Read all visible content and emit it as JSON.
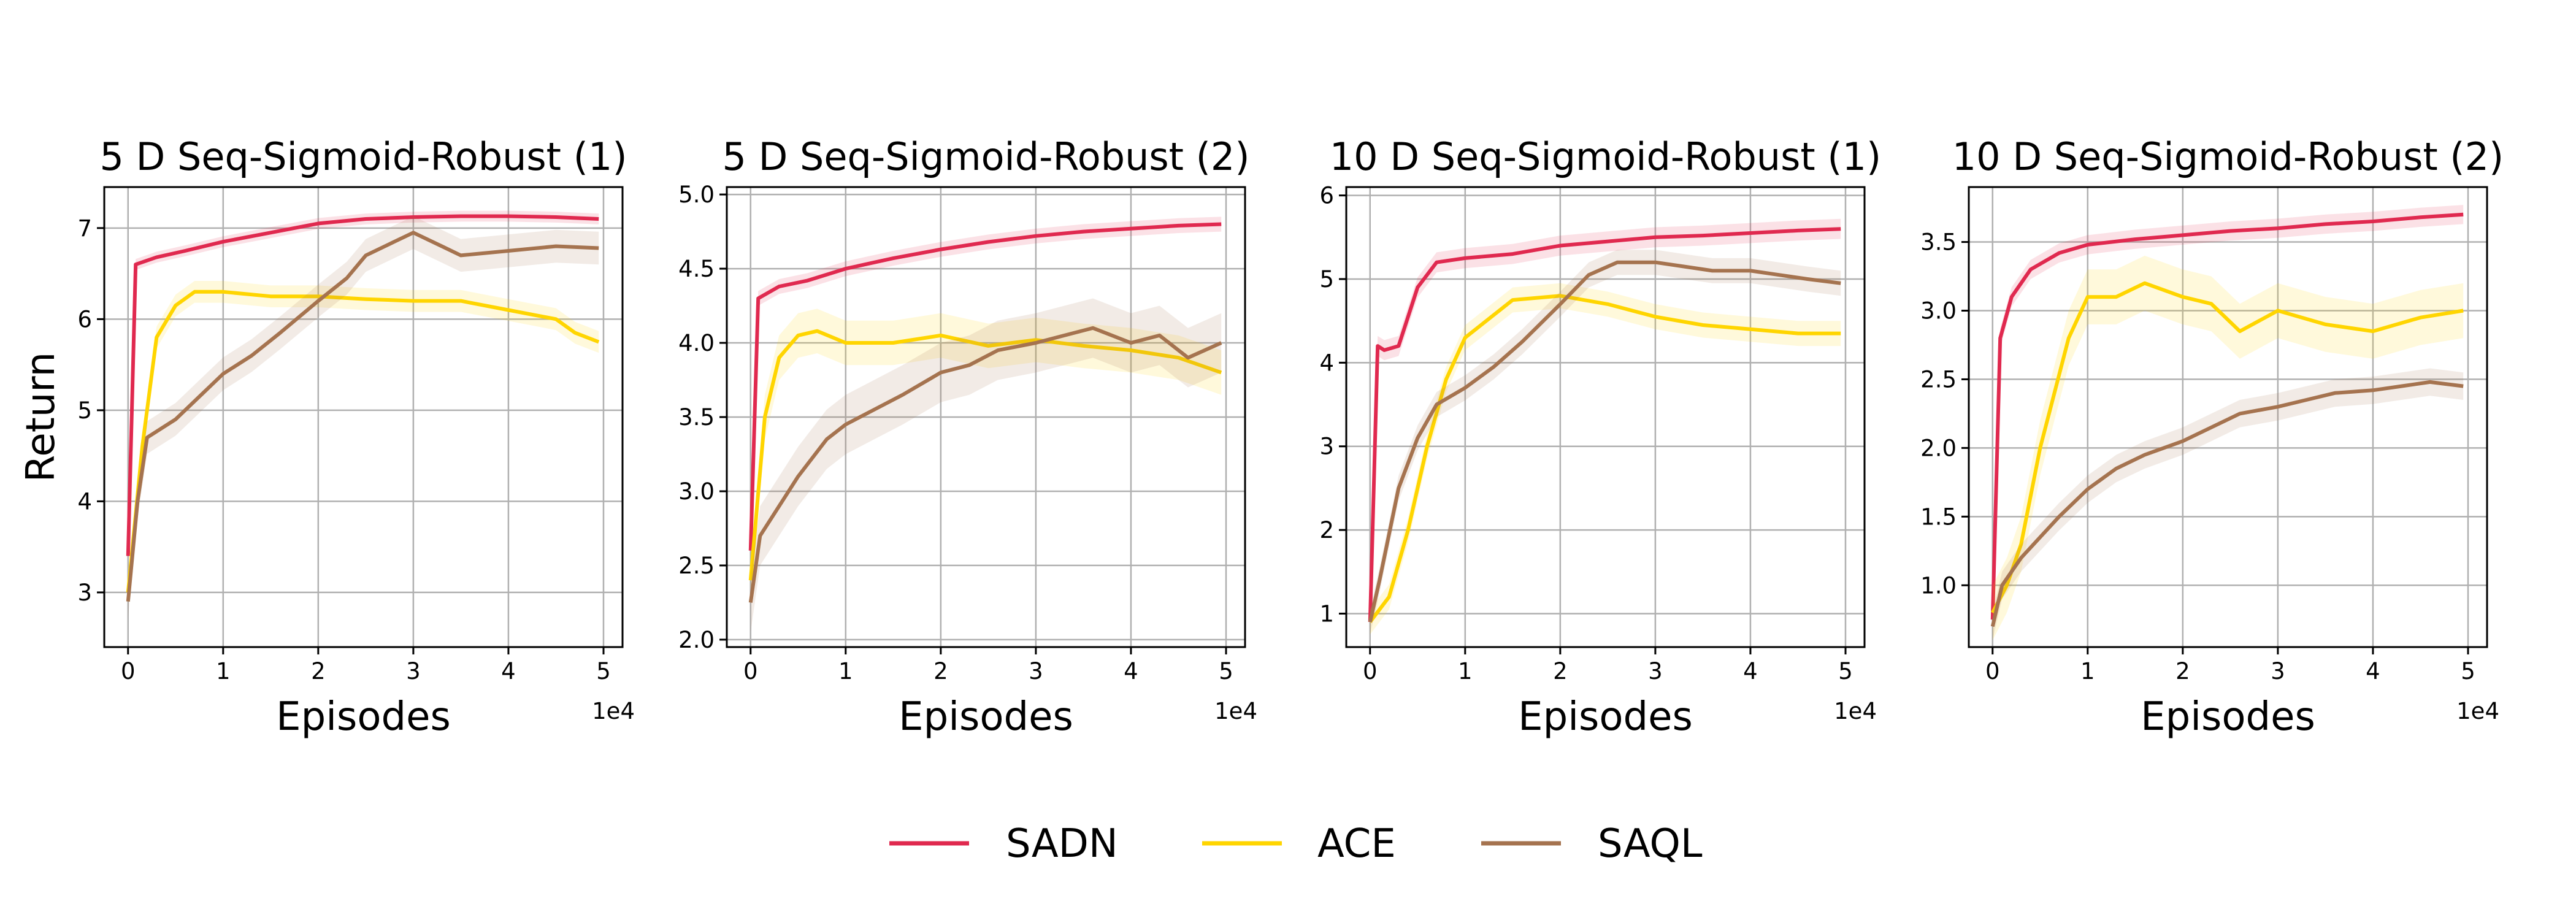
{
  "figure": {
    "ylabel": "Return",
    "legend": {
      "position": "bottom-center",
      "entries": [
        {
          "name": "SADN",
          "color": "#e0294f"
        },
        {
          "name": "ACE",
          "color": "#ffd500"
        },
        {
          "name": "SAQL",
          "color": "#a5734f"
        }
      ]
    }
  },
  "chart_data": [
    {
      "type": "line",
      "title": "5 D Seq-Sigmoid-Robust (1)",
      "xlabel": "Episodes",
      "x_offset_label": "1e4",
      "xlim": [
        -0.25,
        5.2
      ],
      "ylim": [
        2.4,
        7.45
      ],
      "xticks": [
        0,
        1,
        2,
        3,
        4,
        5
      ],
      "xtick_labels": [
        "0",
        "1",
        "2",
        "3",
        "4",
        "5"
      ],
      "yticks": [
        3,
        4,
        5,
        6,
        7
      ],
      "ytick_labels": [
        "3",
        "4",
        "5",
        "6",
        "7"
      ],
      "grid": true,
      "series": [
        {
          "name": "SADN",
          "x": [
            0,
            0.08,
            0.3,
            0.6,
            1,
            1.5,
            2,
            2.5,
            3,
            3.5,
            4,
            4.5,
            4.95
          ],
          "y": [
            3.4,
            6.6,
            6.68,
            6.75,
            6.85,
            6.95,
            7.05,
            7.1,
            7.12,
            7.13,
            7.13,
            7.12,
            7.1
          ],
          "band": 0.06
        },
        {
          "name": "ACE",
          "x": [
            0,
            0.15,
            0.3,
            0.5,
            0.7,
            1,
            1.5,
            2,
            2.5,
            3,
            3.5,
            4,
            4.5,
            4.7,
            4.95
          ],
          "y": [
            3.0,
            4.6,
            5.8,
            6.15,
            6.3,
            6.3,
            6.25,
            6.25,
            6.22,
            6.2,
            6.2,
            6.1,
            6.0,
            5.85,
            5.75
          ],
          "band": 0.12
        },
        {
          "name": "SAQL",
          "x": [
            0,
            0.1,
            0.2,
            0.5,
            0.8,
            1,
            1.3,
            1.6,
            2,
            2.3,
            2.5,
            2.8,
            3,
            3.3,
            3.5,
            4,
            4.5,
            4.95
          ],
          "y": [
            2.9,
            4.0,
            4.7,
            4.9,
            5.2,
            5.4,
            5.6,
            5.85,
            6.2,
            6.45,
            6.7,
            6.85,
            6.95,
            6.8,
            6.7,
            6.75,
            6.8,
            6.78
          ],
          "band": 0.18
        }
      ]
    },
    {
      "type": "line",
      "title": "5 D Seq-Sigmoid-Robust (2)",
      "xlabel": "Episodes",
      "x_offset_label": "1e4",
      "xlim": [
        -0.25,
        5.2
      ],
      "ylim": [
        1.95,
        5.05
      ],
      "xticks": [
        0,
        1,
        2,
        3,
        4,
        5
      ],
      "xtick_labels": [
        "0",
        "1",
        "2",
        "3",
        "4",
        "5"
      ],
      "yticks": [
        2.0,
        2.5,
        3.0,
        3.5,
        4.0,
        4.5,
        5.0
      ],
      "ytick_labels": [
        "2.0",
        "2.5",
        "3.0",
        "3.5",
        "4.0",
        "4.5",
        "5.0"
      ],
      "grid": true,
      "series": [
        {
          "name": "SADN",
          "x": [
            0,
            0.08,
            0.3,
            0.6,
            1,
            1.5,
            2,
            2.5,
            3,
            3.5,
            4,
            4.5,
            4.95
          ],
          "y": [
            2.6,
            4.3,
            4.38,
            4.42,
            4.5,
            4.57,
            4.63,
            4.68,
            4.72,
            4.75,
            4.77,
            4.79,
            4.8
          ],
          "band": 0.05
        },
        {
          "name": "ACE",
          "x": [
            0,
            0.15,
            0.3,
            0.5,
            0.7,
            1,
            1.5,
            2,
            2.5,
            3,
            3.5,
            4,
            4.5,
            4.95
          ],
          "y": [
            2.4,
            3.5,
            3.9,
            4.05,
            4.08,
            4.0,
            4.0,
            4.05,
            3.98,
            4.02,
            3.98,
            3.95,
            3.9,
            3.8
          ],
          "band": 0.15
        },
        {
          "name": "SAQL",
          "x": [
            0,
            0.1,
            0.2,
            0.5,
            0.8,
            1,
            1.3,
            1.6,
            2,
            2.3,
            2.6,
            3,
            3.3,
            3.6,
            4,
            4.3,
            4.6,
            4.95
          ],
          "y": [
            2.25,
            2.7,
            2.8,
            3.1,
            3.35,
            3.45,
            3.55,
            3.65,
            3.8,
            3.85,
            3.95,
            4.0,
            4.05,
            4.1,
            4.0,
            4.05,
            3.9,
            4.0
          ],
          "band": 0.2
        }
      ]
    },
    {
      "type": "line",
      "title": "10 D Seq-Sigmoid-Robust (1)",
      "xlabel": "Episodes",
      "x_offset_label": "1e4",
      "xlim": [
        -0.25,
        5.2
      ],
      "ylim": [
        0.6,
        6.1
      ],
      "xticks": [
        0,
        1,
        2,
        3,
        4,
        5
      ],
      "xtick_labels": [
        "0",
        "1",
        "2",
        "3",
        "4",
        "5"
      ],
      "yticks": [
        1,
        2,
        3,
        4,
        5,
        6
      ],
      "ytick_labels": [
        "1",
        "2",
        "3",
        "4",
        "5",
        "6"
      ],
      "grid": true,
      "series": [
        {
          "name": "SADN",
          "x": [
            0,
            0.08,
            0.15,
            0.3,
            0.5,
            0.7,
            1,
            1.5,
            2,
            2.5,
            3,
            3.5,
            4,
            4.5,
            4.95
          ],
          "y": [
            0.9,
            4.2,
            4.15,
            4.2,
            4.9,
            5.2,
            5.25,
            5.3,
            5.4,
            5.45,
            5.5,
            5.52,
            5.55,
            5.58,
            5.6
          ],
          "band": 0.12
        },
        {
          "name": "ACE",
          "x": [
            0,
            0.2,
            0.4,
            0.6,
            0.8,
            1,
            1.5,
            2,
            2.5,
            3,
            3.5,
            4,
            4.5,
            4.95
          ],
          "y": [
            0.9,
            1.2,
            2.0,
            3.0,
            3.8,
            4.3,
            4.75,
            4.8,
            4.7,
            4.55,
            4.45,
            4.4,
            4.35,
            4.35
          ],
          "band": 0.15
        },
        {
          "name": "SAQL",
          "x": [
            0,
            0.1,
            0.3,
            0.5,
            0.7,
            1,
            1.3,
            1.6,
            2,
            2.3,
            2.6,
            3,
            3.3,
            3.6,
            4,
            4.3,
            4.6,
            4.95
          ],
          "y": [
            0.9,
            1.4,
            2.5,
            3.1,
            3.5,
            3.7,
            3.95,
            4.25,
            4.7,
            5.05,
            5.2,
            5.2,
            5.15,
            5.1,
            5.1,
            5.05,
            5.0,
            4.95
          ],
          "band": 0.15
        }
      ]
    },
    {
      "type": "line",
      "title": "10 D Seq-Sigmoid-Robust (2)",
      "xlabel": "Episodes",
      "x_offset_label": "1e4",
      "xlim": [
        -0.25,
        5.2
      ],
      "ylim": [
        0.55,
        3.9
      ],
      "xticks": [
        0,
        1,
        2,
        3,
        4,
        5
      ],
      "xtick_labels": [
        "0",
        "1",
        "2",
        "3",
        "4",
        "5"
      ],
      "yticks": [
        1.0,
        1.5,
        2.0,
        2.5,
        3.0,
        3.5
      ],
      "ytick_labels": [
        "1.0",
        "1.5",
        "2.0",
        "2.5",
        "3.0",
        "3.5"
      ],
      "grid": true,
      "series": [
        {
          "name": "SADN",
          "x": [
            0,
            0.08,
            0.2,
            0.4,
            0.7,
            1,
            1.5,
            2,
            2.5,
            3,
            3.5,
            4,
            4.5,
            4.95
          ],
          "y": [
            0.75,
            2.8,
            3.1,
            3.3,
            3.42,
            3.48,
            3.52,
            3.55,
            3.58,
            3.6,
            3.63,
            3.65,
            3.68,
            3.7
          ],
          "band": 0.07
        },
        {
          "name": "ACE",
          "x": [
            0,
            0.15,
            0.3,
            0.5,
            0.8,
            1,
            1.3,
            1.6,
            2,
            2.3,
            2.6,
            3,
            3.5,
            4,
            4.5,
            4.95
          ],
          "y": [
            0.8,
            1.0,
            1.3,
            2.0,
            2.8,
            3.1,
            3.1,
            3.2,
            3.1,
            3.05,
            2.85,
            3.0,
            2.9,
            2.85,
            2.95,
            3.0
          ],
          "band": 0.2
        },
        {
          "name": "SAQL",
          "x": [
            0,
            0.1,
            0.3,
            0.5,
            0.7,
            1,
            1.3,
            1.6,
            2,
            2.3,
            2.6,
            3,
            3.3,
            3.6,
            4,
            4.3,
            4.6,
            4.95
          ],
          "y": [
            0.7,
            1.0,
            1.2,
            1.35,
            1.5,
            1.7,
            1.85,
            1.95,
            2.05,
            2.15,
            2.25,
            2.3,
            2.35,
            2.4,
            2.42,
            2.45,
            2.48,
            2.45
          ],
          "band": 0.1
        }
      ]
    }
  ]
}
